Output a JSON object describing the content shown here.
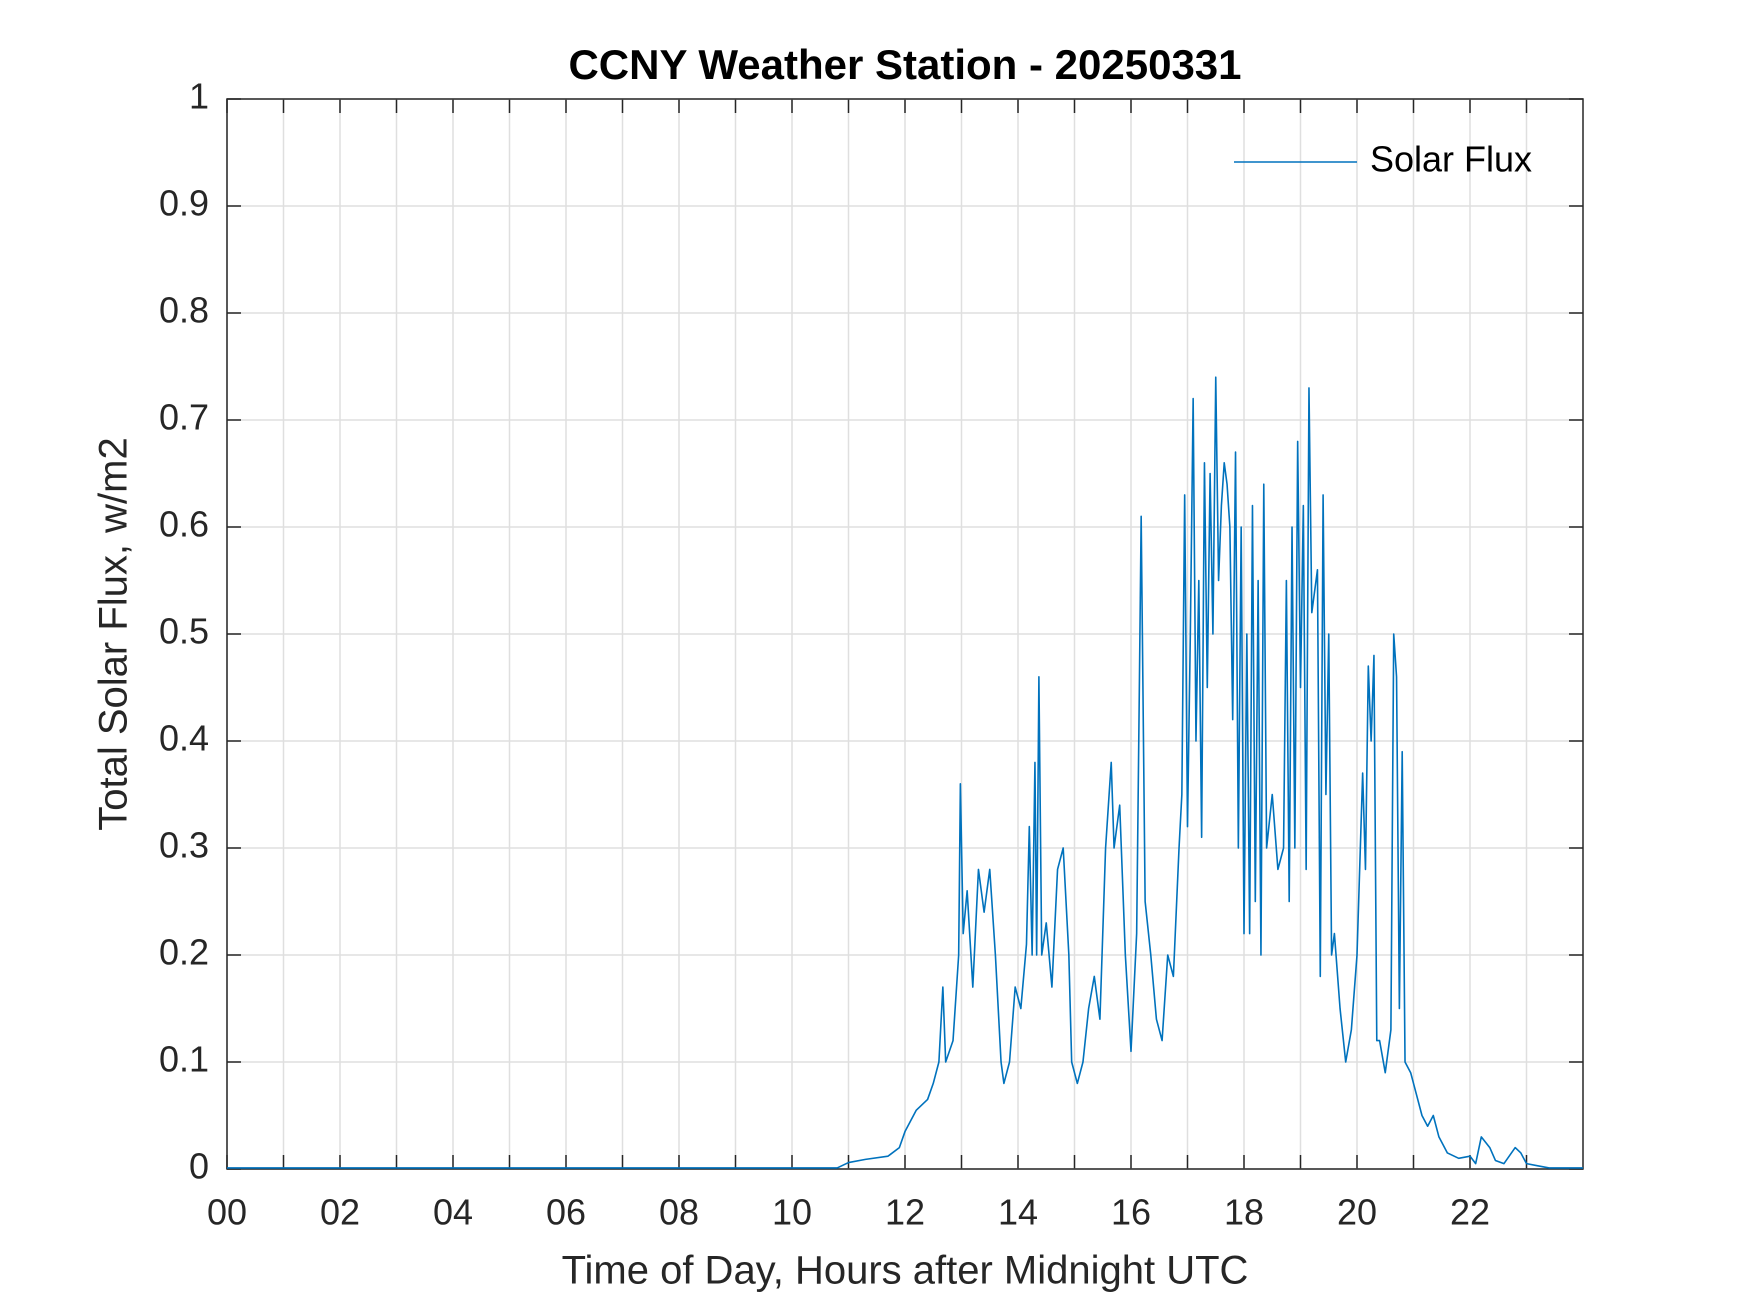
{
  "chart_data": {
    "type": "line",
    "title": "CCNY Weather Station - 20250331",
    "x_label": "Time of Day, Hours after Midnight UTC",
    "y_label": "Total Solar Flux, w/m2",
    "xlim": [
      0,
      24
    ],
    "ylim": [
      0,
      1
    ],
    "xticks": [
      {
        "value": 0,
        "label": "00"
      },
      {
        "value": 2,
        "label": "02"
      },
      {
        "value": 4,
        "label": "04"
      },
      {
        "value": 6,
        "label": "06"
      },
      {
        "value": 8,
        "label": "08"
      },
      {
        "value": 10,
        "label": "10"
      },
      12,
      14,
      16,
      18,
      20,
      22
    ],
    "minor_xticks": [
      1,
      3,
      5,
      7,
      9,
      11,
      13,
      15,
      17,
      19,
      21,
      23
    ],
    "yticks": [
      0,
      0.1,
      0.2,
      0.3,
      0.4,
      0.5,
      0.6,
      0.7,
      0.8,
      0.9,
      1
    ],
    "grid": true,
    "legend": "upper right",
    "x": [
      0,
      10.8,
      11.0,
      11.3,
      11.7,
      11.9,
      12.0,
      12.2,
      12.4,
      12.5,
      12.6,
      12.67,
      12.72,
      12.85,
      12.95,
      12.98,
      13.03,
      13.1,
      13.2,
      13.3,
      13.4,
      13.5,
      13.6,
      13.7,
      13.75,
      13.85,
      13.95,
      14.05,
      14.1,
      14.15,
      14.2,
      14.25,
      14.3,
      14.33,
      14.37,
      14.42,
      14.5,
      14.6,
      14.7,
      14.8,
      14.9,
      14.95,
      15.05,
      15.15,
      15.25,
      15.35,
      15.45,
      15.55,
      15.65,
      15.7,
      15.8,
      15.9,
      16.0,
      16.1,
      16.15,
      16.18,
      16.25,
      16.35,
      16.45,
      16.55,
      16.65,
      16.75,
      16.85,
      16.9,
      16.95,
      17.0,
      17.05,
      17.1,
      17.15,
      17.2,
      17.25,
      17.3,
      17.35,
      17.4,
      17.45,
      17.5,
      17.55,
      17.6,
      17.65,
      17.7,
      17.75,
      17.8,
      17.85,
      17.9,
      17.95,
      18.0,
      18.05,
      18.1,
      18.15,
      18.2,
      18.25,
      18.3,
      18.35,
      18.4,
      18.5,
      18.6,
      18.7,
      18.75,
      18.8,
      18.85,
      18.9,
      18.95,
      19.0,
      19.05,
      19.1,
      19.15,
      19.2,
      19.3,
      19.35,
      19.4,
      19.45,
      19.5,
      19.55,
      19.6,
      19.7,
      19.8,
      19.9,
      20.0,
      20.1,
      20.15,
      20.2,
      20.25,
      20.3,
      20.35,
      20.4,
      20.5,
      20.6,
      20.65,
      20.7,
      20.75,
      20.8,
      20.85,
      20.95,
      21.05,
      21.15,
      21.25,
      21.35,
      21.45,
      21.6,
      21.8,
      22.0,
      22.1,
      22.2,
      22.35,
      22.45,
      22.6,
      22.8,
      22.9,
      23.0,
      23.2,
      23.4,
      24
    ],
    "series": [
      {
        "name": "Solar Flux",
        "color": "#0072bd",
        "values": [
          0.001,
          0.001,
          0.006,
          0.009,
          0.012,
          0.02,
          0.035,
          0.055,
          0.065,
          0.08,
          0.1,
          0.17,
          0.1,
          0.12,
          0.2,
          0.36,
          0.22,
          0.26,
          0.17,
          0.28,
          0.24,
          0.28,
          0.2,
          0.1,
          0.08,
          0.1,
          0.17,
          0.15,
          0.18,
          0.21,
          0.32,
          0.2,
          0.38,
          0.2,
          0.46,
          0.2,
          0.23,
          0.17,
          0.28,
          0.3,
          0.2,
          0.1,
          0.08,
          0.1,
          0.15,
          0.18,
          0.14,
          0.3,
          0.38,
          0.3,
          0.34,
          0.2,
          0.11,
          0.22,
          0.46,
          0.61,
          0.25,
          0.2,
          0.14,
          0.12,
          0.2,
          0.18,
          0.3,
          0.35,
          0.63,
          0.32,
          0.5,
          0.72,
          0.4,
          0.55,
          0.31,
          0.66,
          0.45,
          0.65,
          0.5,
          0.74,
          0.55,
          0.62,
          0.66,
          0.64,
          0.6,
          0.42,
          0.67,
          0.3,
          0.6,
          0.22,
          0.5,
          0.22,
          0.62,
          0.25,
          0.55,
          0.2,
          0.64,
          0.3,
          0.35,
          0.28,
          0.3,
          0.55,
          0.25,
          0.6,
          0.3,
          0.68,
          0.45,
          0.62,
          0.28,
          0.73,
          0.52,
          0.56,
          0.18,
          0.63,
          0.35,
          0.5,
          0.2,
          0.22,
          0.15,
          0.1,
          0.13,
          0.2,
          0.37,
          0.28,
          0.47,
          0.4,
          0.48,
          0.12,
          0.12,
          0.09,
          0.13,
          0.5,
          0.46,
          0.15,
          0.39,
          0.1,
          0.09,
          0.07,
          0.05,
          0.04,
          0.05,
          0.03,
          0.015,
          0.01,
          0.012,
          0.005,
          0.03,
          0.02,
          0.008,
          0.005,
          0.02,
          0.015,
          0.005,
          0.003,
          0.001,
          0.001
        ]
      }
    ]
  }
}
